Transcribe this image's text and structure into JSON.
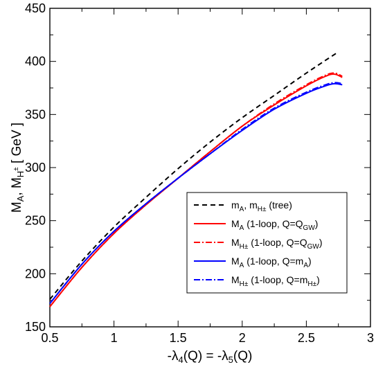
{
  "chart_data": {
    "type": "line",
    "xlabel": "-λ4(Q) = -λ5(Q)",
    "ylabel": "MA, MH±  [ GeV ]",
    "xlim": [
      0.5,
      3.0
    ],
    "ylim": [
      150,
      450
    ],
    "xticks": [
      0.5,
      1,
      1.5,
      2,
      2.5,
      3
    ],
    "xtick_labels": [
      "0.5",
      "1",
      "1.5",
      "2",
      "2.5",
      "3"
    ],
    "yticks": [
      150,
      200,
      250,
      300,
      350,
      400,
      450
    ],
    "ytick_labels": [
      "150",
      "200",
      "250",
      "300",
      "350",
      "400",
      "450"
    ],
    "grid": false,
    "legend_position": "lower-right",
    "series": [
      {
        "name": "mA, mH± (tree)",
        "legend_label": {
          "main": "m",
          "sub1": "A",
          "mid": ", m",
          "sub2": "H±",
          "tail": "   (tree)"
        },
        "color": "#000000",
        "dash": "7,5",
        "x": [
          0.5,
          0.75,
          1.0,
          1.25,
          1.5,
          1.75,
          2.0,
          2.25,
          2.5,
          2.75
        ],
        "y": [
          176,
          212,
          244,
          272,
          299,
          324,
          347,
          368,
          389,
          409
        ]
      },
      {
        "name": "MA (1-loop, Q=QGW)",
        "legend_label": {
          "main": "M",
          "sub1": "A",
          "mid": "  (1-loop, Q=Q",
          "sub2": "GW",
          "tail": ")"
        },
        "color": "#ff0000",
        "dash": "",
        "x": [
          0.5,
          0.75,
          1.0,
          1.25,
          1.5,
          1.75,
          2.0,
          2.25,
          2.5,
          2.65,
          2.72,
          2.78
        ],
        "y": [
          169,
          206,
          238,
          265,
          290,
          315,
          339,
          359,
          377,
          386,
          388,
          385
        ]
      },
      {
        "name": "MH± (1-loop, Q=QGW)",
        "legend_label": {
          "main": "M",
          "sub1": "H±",
          "mid": " (1-loop, Q=Q",
          "sub2": "GW",
          "tail": ")"
        },
        "color": "#ff0000",
        "dash": "9,3,2,3",
        "x": [
          0.5,
          0.75,
          1.0,
          1.25,
          1.5,
          1.75,
          2.0,
          2.25,
          2.5,
          2.65,
          2.72,
          2.78
        ],
        "y": [
          169,
          206,
          238,
          265,
          290,
          315,
          339,
          360,
          378,
          387,
          389,
          386
        ]
      },
      {
        "name": "MA (1-loop, Q=mA)",
        "legend_label": {
          "main": "M",
          "sub1": "A",
          "mid": "  (1-loop, Q=m",
          "sub2": "A",
          "tail": ")"
        },
        "color": "#0000ff",
        "dash": "",
        "x": [
          0.5,
          0.75,
          1.0,
          1.25,
          1.5,
          1.75,
          2.0,
          2.25,
          2.5,
          2.65,
          2.72,
          2.78
        ],
        "y": [
          172,
          209,
          240,
          266,
          290,
          313,
          335,
          355,
          370,
          377,
          379,
          378
        ]
      },
      {
        "name": "MH± (1-loop, Q=mH±)",
        "legend_label": {
          "main": "M",
          "sub1": "H±",
          "mid": " (1-loop, Q=m",
          "sub2": "H±",
          "tail": ")"
        },
        "color": "#0000ff",
        "dash": "9,3,2,3",
        "x": [
          0.5,
          0.75,
          1.0,
          1.25,
          1.5,
          1.75,
          2.0,
          2.25,
          2.5,
          2.65,
          2.72,
          2.78
        ],
        "y": [
          172,
          209,
          240,
          266,
          290,
          313,
          336,
          356,
          371,
          378,
          380,
          379
        ]
      }
    ]
  }
}
